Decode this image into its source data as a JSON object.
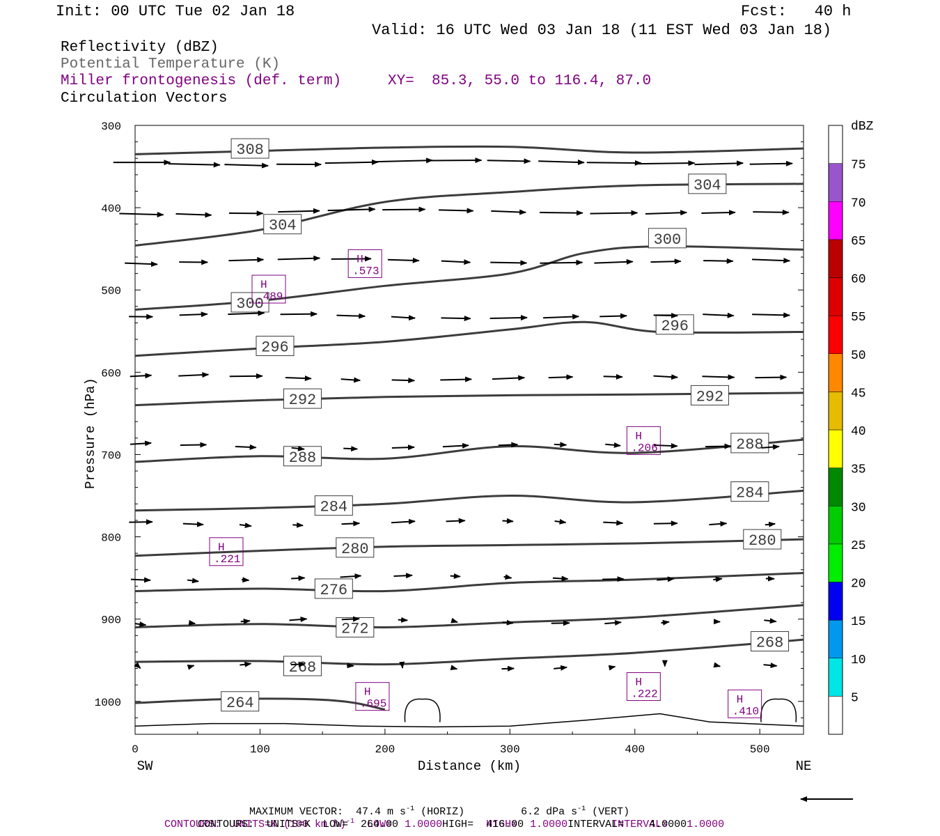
{
  "header": {
    "init": "Init: 00 UTC Tue 02 Jan 18",
    "fcst": "Fcst:   40 h",
    "valid": "Valid: 16 UTC Wed 03 Jan 18 (11 EST Wed 03 Jan 18)",
    "field1": "Reflectivity (dBZ)",
    "field2": "Potential Temperature (K)",
    "field3": "Miller frontogenesis (def. term)",
    "xy": "XY=  85.3, 55.0 to 116.4, 87.0",
    "field4": "Circulation Vectors"
  },
  "footer": {
    "max_vector_a": "MAXIMUM VECTOR:  47.4 m s",
    "max_vector_sup1": "-1",
    "max_vector_b": " (HORIZ)         6.2 dPa s",
    "max_vector_sup2": "-1",
    "max_vector_c": " (VERT)",
    "contours1_a": "CONTOURS:  UNITS=K (100 km h)",
    "contours1_sup": "-1",
    "contours1_b": "  LOW=  1.0000       HIGH=  1.0000       INTERVAL=   1.0000",
    "contours2": "CONTOURS:  UNITS=K  LOW=  264.00       HIGH=  416.00       INTERVAL=    4.0000"
  },
  "colors": {
    "theta": "#3c3c3c",
    "fronto": "#800080",
    "vector": "#000000"
  },
  "chart_data": {
    "type": "cross-section",
    "xlabel": "Distance (km)",
    "ylabel": "Pressure (hPa)",
    "xlim": [
      0,
      535
    ],
    "ylim": [
      1040,
      300
    ],
    "x_ticks": [
      0,
      100,
      200,
      300,
      400,
      500
    ],
    "y_ticks": [
      300,
      400,
      500,
      600,
      700,
      800,
      900,
      1000
    ],
    "x_end_labels": {
      "left": "SW",
      "right": "NE"
    },
    "colorbar": {
      "title": "dBZ",
      "levels": [
        5,
        10,
        15,
        20,
        25,
        30,
        35,
        40,
        45,
        50,
        55,
        60,
        65,
        70,
        75
      ],
      "colors": [
        "#ffffff",
        "#00e5e5",
        "#0099ee",
        "#0000ee",
        "#00ee00",
        "#00cc00",
        "#008800",
        "#ffff00",
        "#e6bb00",
        "#ff8800",
        "#ff0000",
        "#dd0000",
        "#bb0000",
        "#ff00ff",
        "#9955cc",
        "#ffffff"
      ]
    },
    "theta_contours": [
      {
        "value": "308",
        "points": [
          [
            0,
            335
          ],
          [
            100,
            331
          ],
          [
            200,
            327
          ],
          [
            300,
            326
          ],
          [
            400,
            333
          ],
          [
            535,
            328
          ]
        ],
        "labels": [
          [
            92,
            328
          ]
        ]
      },
      {
        "value": "304",
        "points": [
          [
            0,
            446
          ],
          [
            100,
            427
          ],
          [
            200,
            393
          ],
          [
            300,
            381
          ],
          [
            400,
            373
          ],
          [
            535,
            371
          ]
        ],
        "labels": [
          [
            118,
            420
          ],
          [
            458,
            371
          ]
        ]
      },
      {
        "value": "300",
        "points": [
          [
            0,
            524
          ],
          [
            100,
            513
          ],
          [
            200,
            495
          ],
          [
            300,
            480
          ],
          [
            360,
            455
          ],
          [
            420,
            447
          ],
          [
            535,
            451
          ]
        ],
        "labels": [
          [
            92,
            515
          ],
          [
            426,
            437
          ]
        ]
      },
      {
        "value": "296",
        "points": [
          [
            0,
            580
          ],
          [
            100,
            571
          ],
          [
            200,
            563
          ],
          [
            300,
            548
          ],
          [
            360,
            539
          ],
          [
            420,
            551
          ],
          [
            535,
            551
          ]
        ],
        "labels": [
          [
            112,
            568
          ],
          [
            432,
            542
          ]
        ]
      },
      {
        "value": "292",
        "points": [
          [
            0,
            640
          ],
          [
            100,
            634
          ],
          [
            200,
            630
          ],
          [
            300,
            628
          ],
          [
            400,
            627
          ],
          [
            535,
            625
          ]
        ],
        "labels": [
          [
            134,
            632
          ],
          [
            460,
            628
          ]
        ]
      },
      {
        "value": "288",
        "points": [
          [
            0,
            709
          ],
          [
            100,
            702
          ],
          [
            200,
            705
          ],
          [
            300,
            690
          ],
          [
            400,
            698
          ],
          [
            535,
            682
          ]
        ],
        "labels": [
          [
            134,
            702
          ],
          [
            492,
            686
          ]
        ]
      },
      {
        "value": "284",
        "points": [
          [
            0,
            768
          ],
          [
            100,
            765
          ],
          [
            200,
            760
          ],
          [
            300,
            750
          ],
          [
            400,
            758
          ],
          [
            535,
            744
          ]
        ],
        "labels": [
          [
            159,
            762
          ],
          [
            492,
            745
          ]
        ]
      },
      {
        "value": "280",
        "points": [
          [
            0,
            823
          ],
          [
            100,
            817
          ],
          [
            200,
            812
          ],
          [
            300,
            810
          ],
          [
            400,
            808
          ],
          [
            535,
            803
          ]
        ],
        "labels": [
          [
            176,
            813
          ],
          [
            502,
            803
          ]
        ]
      },
      {
        "value": "276",
        "points": [
          [
            0,
            866
          ],
          [
            100,
            863
          ],
          [
            200,
            866
          ],
          [
            300,
            856
          ],
          [
            400,
            852
          ],
          [
            535,
            844
          ]
        ],
        "labels": [
          [
            159,
            863
          ],
          null
        ]
      },
      {
        "value": "272",
        "points": [
          [
            0,
            910
          ],
          [
            100,
            906
          ],
          [
            200,
            910
          ],
          [
            300,
            904
          ],
          [
            400,
            898
          ],
          [
            535,
            883
          ]
        ],
        "labels": [
          [
            176,
            910
          ],
          null
        ]
      },
      {
        "value": "268",
        "points": [
          [
            0,
            952
          ],
          [
            100,
            951
          ],
          [
            200,
            955
          ],
          [
            300,
            948
          ],
          [
            400,
            941
          ],
          [
            535,
            925
          ]
        ],
        "labels": [
          [
            134,
            957
          ],
          [
            508,
            927
          ]
        ]
      },
      {
        "value": "264",
        "points": [
          [
            0,
            1002
          ],
          [
            80,
            997
          ],
          [
            160,
            999
          ],
          [
            200,
            1010
          ]
        ],
        "labels": [
          [
            84,
            1000
          ]
        ]
      }
    ],
    "fronto_maxima": [
      {
        "label": "H",
        "value": ".573",
        "x": 184,
        "p": 468
      },
      {
        "label": "H",
        "value": ".489",
        "x": 107,
        "p": 499
      },
      {
        "label": "H",
        "value": ".206",
        "x": 407,
        "p": 683
      },
      {
        "label": "H",
        "value": ".221",
        "x": 73,
        "p": 818
      },
      {
        "label": "H",
        "value": ".695",
        "x": 190,
        "p": 994
      },
      {
        "label": "H",
        "value": ".222",
        "x": 407,
        "p": 982
      },
      {
        "label": "H",
        "value": ".410",
        "x": 488,
        "p": 1003
      }
    ]
  }
}
